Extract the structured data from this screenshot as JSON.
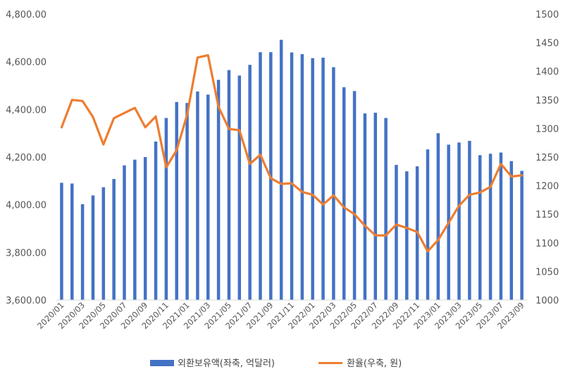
{
  "chart_data": {
    "type": "bar+line",
    "x": [
      "2020/01",
      "2020/02",
      "2020/03",
      "2020/04",
      "2020/05",
      "2020/06",
      "2020/07",
      "2020/08",
      "2020/09",
      "2020/10",
      "2020/11",
      "2020/12",
      "2021/01",
      "2021/02",
      "2021/03",
      "2021/04",
      "2021/05",
      "2021/06",
      "2021/07",
      "2021/08",
      "2021/09",
      "2021/10",
      "2021/11",
      "2021/12",
      "2022/01",
      "2022/02",
      "2022/03",
      "2022/04",
      "2022/05",
      "2022/06",
      "2022/07",
      "2022/08",
      "2022/09",
      "2022/10",
      "2022/11",
      "2022/12",
      "2023/01",
      "2023/02",
      "2023/03",
      "2023/04",
      "2023/05",
      "2023/06",
      "2023/07",
      "2023/08",
      "2023/09"
    ],
    "x_tick_labels": [
      "2020/01",
      "2020/03",
      "2020/05",
      "2020/07",
      "2020/09",
      "2020/11",
      "2021/01",
      "2021/03",
      "2021/05",
      "2021/07",
      "2021/09",
      "2021/11",
      "2022/01",
      "2022/03",
      "2022/05",
      "2022/07",
      "2022/09",
      "2022/11",
      "2023/01",
      "2023/03",
      "2023/05",
      "2023/07",
      "2023/09"
    ],
    "series": [
      {
        "name": "외환보유액(좌축, 억달러)",
        "type": "bar",
        "axis": "left",
        "color": "#4472C4",
        "values": [
          4092,
          4089,
          4002,
          4039,
          4073,
          4108,
          4165,
          4189,
          4200,
          4265,
          4364,
          4431,
          4427,
          4475,
          4462,
          4524,
          4565,
          4542,
          4587,
          4640,
          4640,
          4692,
          4639,
          4632,
          4615,
          4617,
          4577,
          4493,
          4477,
          4383,
          4386,
          4364,
          4167,
          4140,
          4161,
          4232,
          4300,
          4252,
          4261,
          4268,
          4208,
          4214,
          4219,
          4183,
          4142
        ]
      },
      {
        "name": "환율(우축, 원)",
        "type": "line",
        "axis": "right",
        "color": "#ED7D31",
        "values": [
          1302,
          1350,
          1348,
          1320,
          1272,
          1318,
          1327,
          1336,
          1302,
          1321,
          1232,
          1262,
          1324,
          1424,
          1428,
          1338,
          1299,
          1297,
          1238,
          1254,
          1213,
          1203,
          1204,
          1189,
          1184,
          1167,
          1183,
          1162,
          1150,
          1130,
          1113,
          1113,
          1132,
          1126,
          1119,
          1085,
          1105,
          1135,
          1165,
          1184,
          1188,
          1198,
          1238,
          1216,
          1218
        ]
      }
    ],
    "y_left": {
      "min": 3600,
      "max": 4800,
      "ticks": [
        "3,600.00",
        "3,800.00",
        "4,000.00",
        "4,200.00",
        "4,400.00",
        "4,600.00",
        "4,800.00"
      ]
    },
    "y_right": {
      "min": 1000,
      "max": 1500,
      "ticks": [
        "1000",
        "1050",
        "1100",
        "1150",
        "1200",
        "1250",
        "1300",
        "1350",
        "1400",
        "1450",
        "1500"
      ]
    },
    "grid": false,
    "legend_position": "bottom",
    "legend": [
      "외환보유액(좌축, 억달러)",
      "환율(우축, 원)"
    ]
  }
}
